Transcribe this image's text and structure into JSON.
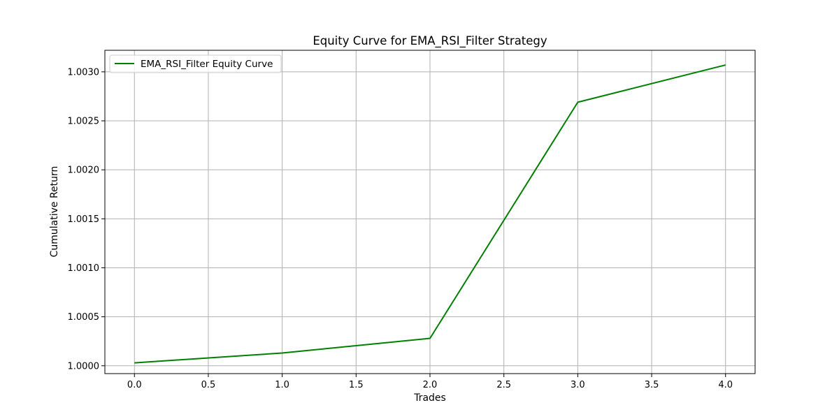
{
  "chart_data": {
    "type": "line",
    "title": "Equity Curve for EMA_RSI_Filter Strategy",
    "xlabel": "Trades",
    "ylabel": "Cumulative Return",
    "xlim": [
      -0.2,
      4.2
    ],
    "ylim": [
      0.99992,
      1.00322
    ],
    "x_ticks": [
      0.0,
      0.5,
      1.0,
      1.5,
      2.0,
      2.5,
      3.0,
      3.5,
      4.0
    ],
    "x_tick_labels": [
      "0.0",
      "0.5",
      "1.0",
      "1.5",
      "2.0",
      "2.5",
      "3.0",
      "3.5",
      "4.0"
    ],
    "y_ticks": [
      1.0,
      1.0005,
      1.001,
      1.0015,
      1.002,
      1.0025,
      1.003
    ],
    "y_tick_labels": [
      "1.0000",
      "1.0005",
      "1.0010",
      "1.0015",
      "1.0020",
      "1.0025",
      "1.0030"
    ],
    "grid": true,
    "legend_position": "top-left",
    "series": [
      {
        "name": "EMA_RSI_Filter Equity Curve",
        "color": "#008000",
        "x": [
          0,
          1,
          2,
          3,
          4
        ],
        "values": [
          1.00003,
          1.00013,
          1.00028,
          1.00269,
          1.00307
        ]
      }
    ]
  }
}
